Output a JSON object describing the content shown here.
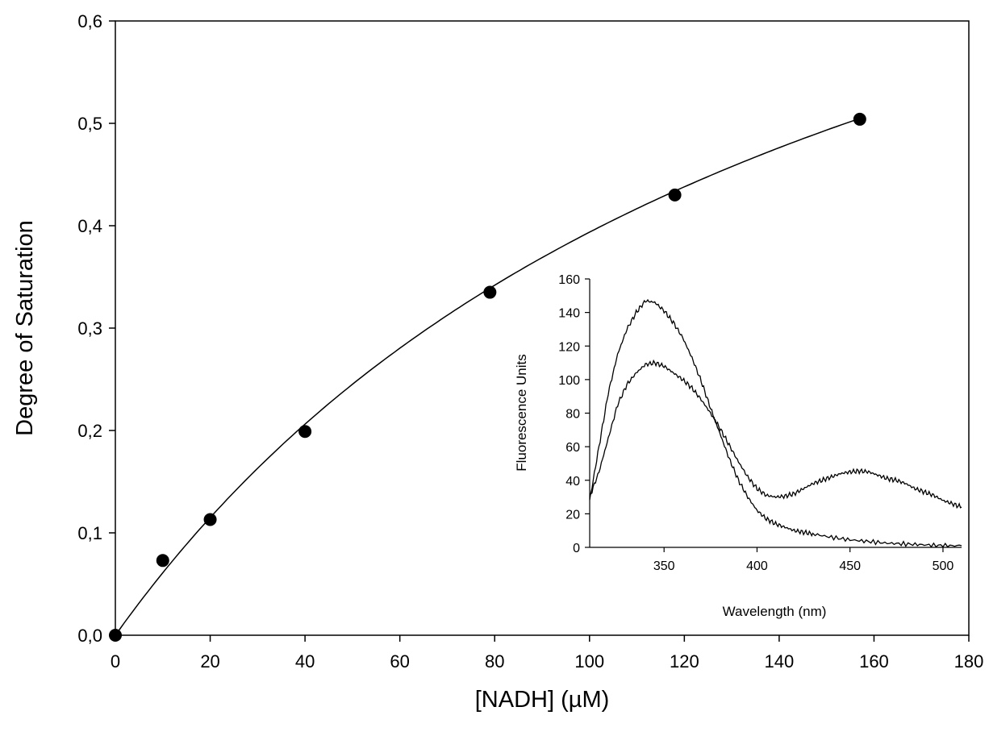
{
  "chart_data": [
    {
      "type": "scatter",
      "xlabel": "[NADH] (µM)",
      "ylabel": "Degree of Saturation",
      "xlim": [
        0,
        180
      ],
      "ylim": [
        0.0,
        0.6
      ],
      "x_ticks": [
        "0",
        "20",
        "40",
        "60",
        "80",
        "100",
        "120",
        "140",
        "160",
        "180"
      ],
      "y_ticks": [
        "0,0",
        "0,1",
        "0,2",
        "0,3",
        "0,4",
        "0,5",
        "0,6"
      ],
      "grid": false,
      "points": [
        {
          "x": 0,
          "y": 0.0
        },
        {
          "x": 10,
          "y": 0.073
        },
        {
          "x": 20,
          "y": 0.113
        },
        {
          "x": 40,
          "y": 0.199
        },
        {
          "x": 79,
          "y": 0.335
        },
        {
          "x": 118,
          "y": 0.43
        },
        {
          "x": 157,
          "y": 0.504
        }
      ],
      "fit": {
        "type": "hyperbolic",
        "bmax": 1.0,
        "kd": 154
      }
    },
    {
      "type": "line",
      "xlabel": "Wavelength (nm)",
      "ylabel": "Fluorescence Units",
      "xlim": [
        310,
        510
      ],
      "ylim": [
        0,
        160
      ],
      "x_ticks": [
        "350",
        "400",
        "450",
        "500"
      ],
      "y_ticks": [
        "0",
        "20",
        "40",
        "60",
        "80",
        "100",
        "120",
        "140",
        "160"
      ],
      "grid": false,
      "series": [
        {
          "x": [
            310,
            315,
            320,
            325,
            330,
            335,
            340,
            345,
            350,
            355,
            360,
            365,
            370,
            375,
            380,
            385,
            390,
            395,
            400,
            405,
            410,
            415,
            420,
            425,
            430,
            440,
            450,
            460,
            470,
            480,
            490,
            500,
            510
          ],
          "values": [
            28,
            60,
            92,
            115,
            130,
            140,
            147,
            146,
            141,
            134,
            125,
            113,
            99,
            83,
            68,
            53,
            40,
            30,
            22,
            17,
            14,
            12,
            10,
            9,
            8,
            6,
            4.5,
            3.5,
            2.5,
            2,
            1.5,
            1,
            1
          ]
        },
        {
          "x": [
            310,
            315,
            320,
            325,
            330,
            335,
            340,
            345,
            350,
            355,
            360,
            365,
            370,
            375,
            380,
            385,
            390,
            395,
            400,
            405,
            410,
            415,
            420,
            425,
            430,
            435,
            440,
            445,
            450,
            455,
            460,
            465,
            470,
            475,
            480,
            485,
            490,
            495,
            500,
            505,
            510
          ],
          "values": [
            30,
            45,
            65,
            85,
            97,
            104,
            109,
            110,
            108,
            104,
            100,
            95,
            88,
            80,
            71,
            61,
            51,
            42,
            35,
            31,
            30,
            30.5,
            32,
            35,
            38,
            40,
            42,
            44,
            45,
            45.5,
            45,
            43,
            41,
            40,
            38,
            35,
            33,
            31,
            28,
            26,
            24
          ]
        }
      ]
    }
  ]
}
